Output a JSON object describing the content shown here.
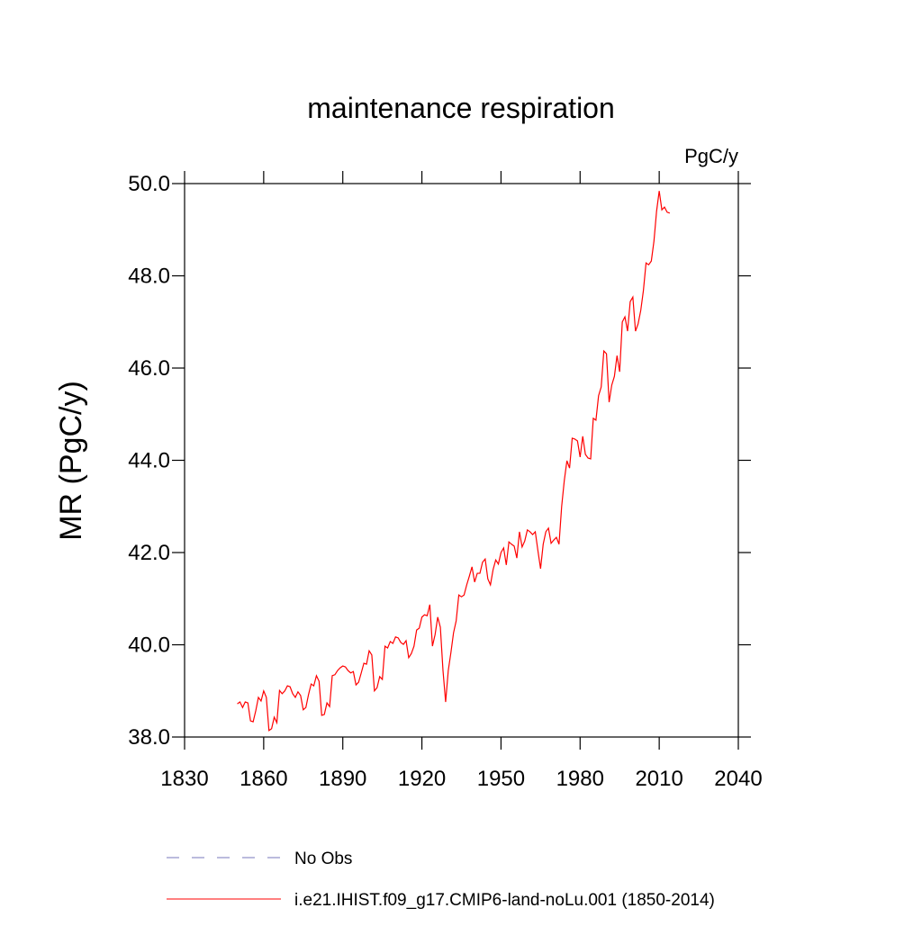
{
  "chart_data": {
    "type": "line",
    "title": "maintenance respiration",
    "units": "PgC/y",
    "ylabel": "MR  (PgC/y)",
    "xlim": [
      1830,
      2040
    ],
    "xticks": [
      1830,
      1860,
      1890,
      1920,
      1950,
      1980,
      2010,
      2040
    ],
    "ylim": [
      38,
      50
    ],
    "yticks": [
      {
        "value": 38,
        "label": "38.0"
      },
      {
        "value": 40,
        "label": "40.0"
      },
      {
        "value": 42,
        "label": "42.0"
      },
      {
        "value": 44,
        "label": "44.0"
      },
      {
        "value": 46,
        "label": "46.0"
      },
      {
        "value": 48,
        "label": "48.0"
      },
      {
        "value": 50,
        "label": "50.0"
      }
    ],
    "x": [
      1850,
      1851,
      1852,
      1853,
      1854,
      1855,
      1856,
      1857,
      1858,
      1859,
      1860,
      1861,
      1862,
      1863,
      1864,
      1865,
      1866,
      1867,
      1868,
      1869,
      1870,
      1871,
      1872,
      1873,
      1874,
      1875,
      1876,
      1877,
      1878,
      1879,
      1880,
      1881,
      1882,
      1883,
      1884,
      1885,
      1886,
      1887,
      1888,
      1889,
      1890,
      1891,
      1892,
      1893,
      1894,
      1895,
      1896,
      1897,
      1898,
      1899,
      1900,
      1901,
      1902,
      1903,
      1904,
      1905,
      1906,
      1907,
      1908,
      1909,
      1910,
      1911,
      1912,
      1913,
      1914,
      1915,
      1916,
      1917,
      1918,
      1919,
      1920,
      1921,
      1922,
      1923,
      1924,
      1925,
      1926,
      1927,
      1928,
      1929,
      1930,
      1931,
      1932,
      1933,
      1934,
      1935,
      1936,
      1937,
      1938,
      1939,
      1940,
      1941,
      1942,
      1943,
      1944,
      1945,
      1946,
      1947,
      1948,
      1949,
      1950,
      1951,
      1952,
      1953,
      1954,
      1955,
      1956,
      1957,
      1958,
      1959,
      1960,
      1961,
      1962,
      1963,
      1964,
      1965,
      1966,
      1967,
      1968,
      1969,
      1970,
      1971,
      1972,
      1973,
      1974,
      1975,
      1976,
      1977,
      1978,
      1979,
      1980,
      1981,
      1982,
      1983,
      1984,
      1985,
      1986,
      1987,
      1988,
      1989,
      1990,
      1991,
      1992,
      1993,
      1994,
      1995,
      1996,
      1997,
      1998,
      1999,
      2000,
      2001,
      2002,
      2003,
      2004,
      2005,
      2006,
      2007,
      2008,
      2009,
      2010,
      2011,
      2012,
      2013,
      2014
    ],
    "series": [
      {
        "name": "No Obs",
        "color": "#7777bb",
        "dashed": true,
        "values": [
          null,
          null,
          null,
          null,
          null,
          null,
          null,
          null,
          null,
          null,
          null,
          null,
          null,
          null,
          null,
          null,
          null,
          null,
          null,
          null,
          null,
          null,
          null,
          null,
          null,
          null,
          null,
          null,
          null,
          null,
          null,
          null,
          null,
          null,
          null,
          null,
          null,
          null,
          null,
          null,
          null,
          null,
          null,
          null,
          null,
          null,
          null,
          null,
          null,
          null,
          null,
          null,
          null,
          null,
          null,
          null,
          null,
          null,
          null,
          null,
          null,
          null,
          null,
          null,
          null,
          null,
          null,
          null,
          null,
          null,
          null,
          null,
          null,
          null,
          null,
          null,
          null,
          null,
          null,
          null,
          null,
          null,
          null,
          null,
          null,
          null,
          null,
          null,
          null,
          null,
          null,
          null,
          null,
          null,
          null,
          null,
          null,
          null,
          null,
          null,
          null,
          null,
          null,
          null,
          null,
          null,
          null,
          null,
          null,
          null,
          null,
          null,
          null,
          null,
          null,
          null,
          null,
          null,
          null,
          null,
          null,
          null,
          null,
          null,
          null,
          null,
          null,
          null,
          null,
          null,
          null,
          null,
          null,
          null,
          null,
          null,
          null,
          null,
          null,
          null,
          null,
          null,
          null,
          null,
          null,
          null,
          null,
          null,
          null,
          null,
          null,
          null,
          null,
          null,
          null,
          null,
          null,
          null,
          null,
          null,
          null,
          null,
          null,
          null,
          null
        ]
      },
      {
        "name": "i.e21.IHIST.f09_g17.CMIP6-land-noLu.001 (1850-2014)",
        "color": "#ff0000",
        "dashed": false,
        "values": [
          38.72,
          38.76,
          38.64,
          38.76,
          38.74,
          38.35,
          38.33,
          38.57,
          38.86,
          38.78,
          39.0,
          38.86,
          38.14,
          38.18,
          38.43,
          38.31,
          39.01,
          38.94,
          39.0,
          39.11,
          39.09,
          38.94,
          38.86,
          38.98,
          38.9,
          38.59,
          38.64,
          38.92,
          39.15,
          39.11,
          39.33,
          39.21,
          38.47,
          38.49,
          38.74,
          38.66,
          39.33,
          39.35,
          39.44,
          39.5,
          39.54,
          39.52,
          39.44,
          39.39,
          39.42,
          39.13,
          39.19,
          39.39,
          39.6,
          39.58,
          39.87,
          39.78,
          39.0,
          39.07,
          39.31,
          39.25,
          39.97,
          39.93,
          40.07,
          40.03,
          40.17,
          40.15,
          40.05,
          40.01,
          40.09,
          39.72,
          39.81,
          39.97,
          40.32,
          40.36,
          40.6,
          40.65,
          40.63,
          40.87,
          39.97,
          40.22,
          40.6,
          40.38,
          39.44,
          38.76,
          39.44,
          39.83,
          40.26,
          40.52,
          41.08,
          41.04,
          41.08,
          41.3,
          41.49,
          41.69,
          41.36,
          41.55,
          41.55,
          41.79,
          41.86,
          41.43,
          41.3,
          41.63,
          41.84,
          41.75,
          42.0,
          42.1,
          41.73,
          42.23,
          42.18,
          42.14,
          41.88,
          42.45,
          42.12,
          42.25,
          42.49,
          42.45,
          42.39,
          42.45,
          42.04,
          41.65,
          42.18,
          42.45,
          42.53,
          42.2,
          42.27,
          42.33,
          42.18,
          43.0,
          43.56,
          43.99,
          43.83,
          44.48,
          44.46,
          44.42,
          44.07,
          44.52,
          44.13,
          44.05,
          44.03,
          44.91,
          44.87,
          45.4,
          45.59,
          46.37,
          46.31,
          45.26,
          45.63,
          45.82,
          46.27,
          45.92,
          47.0,
          47.11,
          46.8,
          47.44,
          47.54,
          46.8,
          46.96,
          47.25,
          47.68,
          48.28,
          48.24,
          48.32,
          48.75,
          49.4,
          49.84,
          49.43,
          49.49,
          49.38,
          49.36
        ]
      }
    ]
  }
}
